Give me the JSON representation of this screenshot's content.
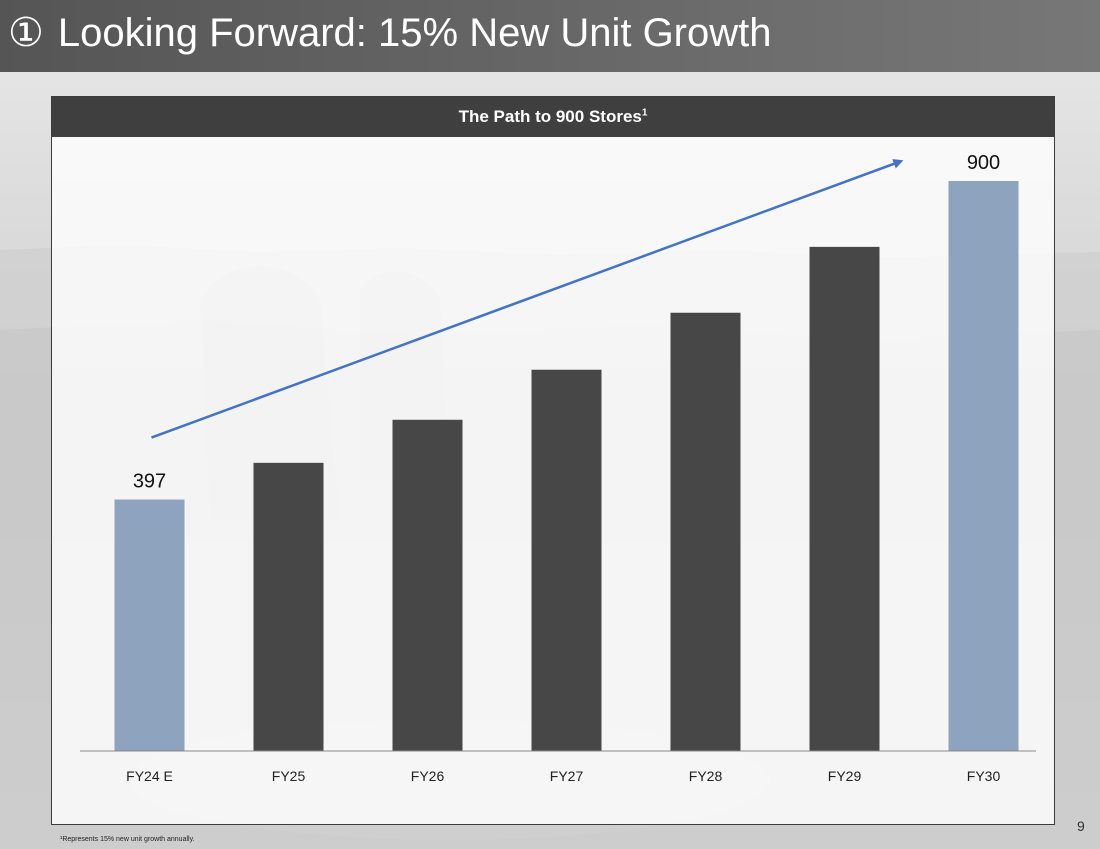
{
  "slide": {
    "title_number": "①",
    "title": "Looking Forward: 15% New Unit Growth",
    "page_number": "9",
    "footnote": "¹Represents 15% new unit growth annually."
  },
  "chart_data": {
    "type": "bar",
    "title": "The Path to 900 Stores",
    "title_superscript": "1",
    "categories": [
      "FY24 E",
      "FY25",
      "FY26",
      "FY27",
      "FY28",
      "FY29",
      "FY30"
    ],
    "values": [
      397,
      455,
      523,
      602,
      692,
      796,
      900
    ],
    "data_labels": [
      "397",
      "",
      "",
      "",
      "",
      "",
      "900"
    ],
    "highlight_indices": [
      0,
      6
    ],
    "xlabel": "",
    "ylabel": "",
    "ylim": [
      0,
      950
    ],
    "grid": false,
    "colors": {
      "bar": "#474747",
      "highlight": "#8ea3bd",
      "trend_arrow": "#4472c4"
    },
    "annotation": "upward trend arrow from FY24 E to FY30"
  }
}
